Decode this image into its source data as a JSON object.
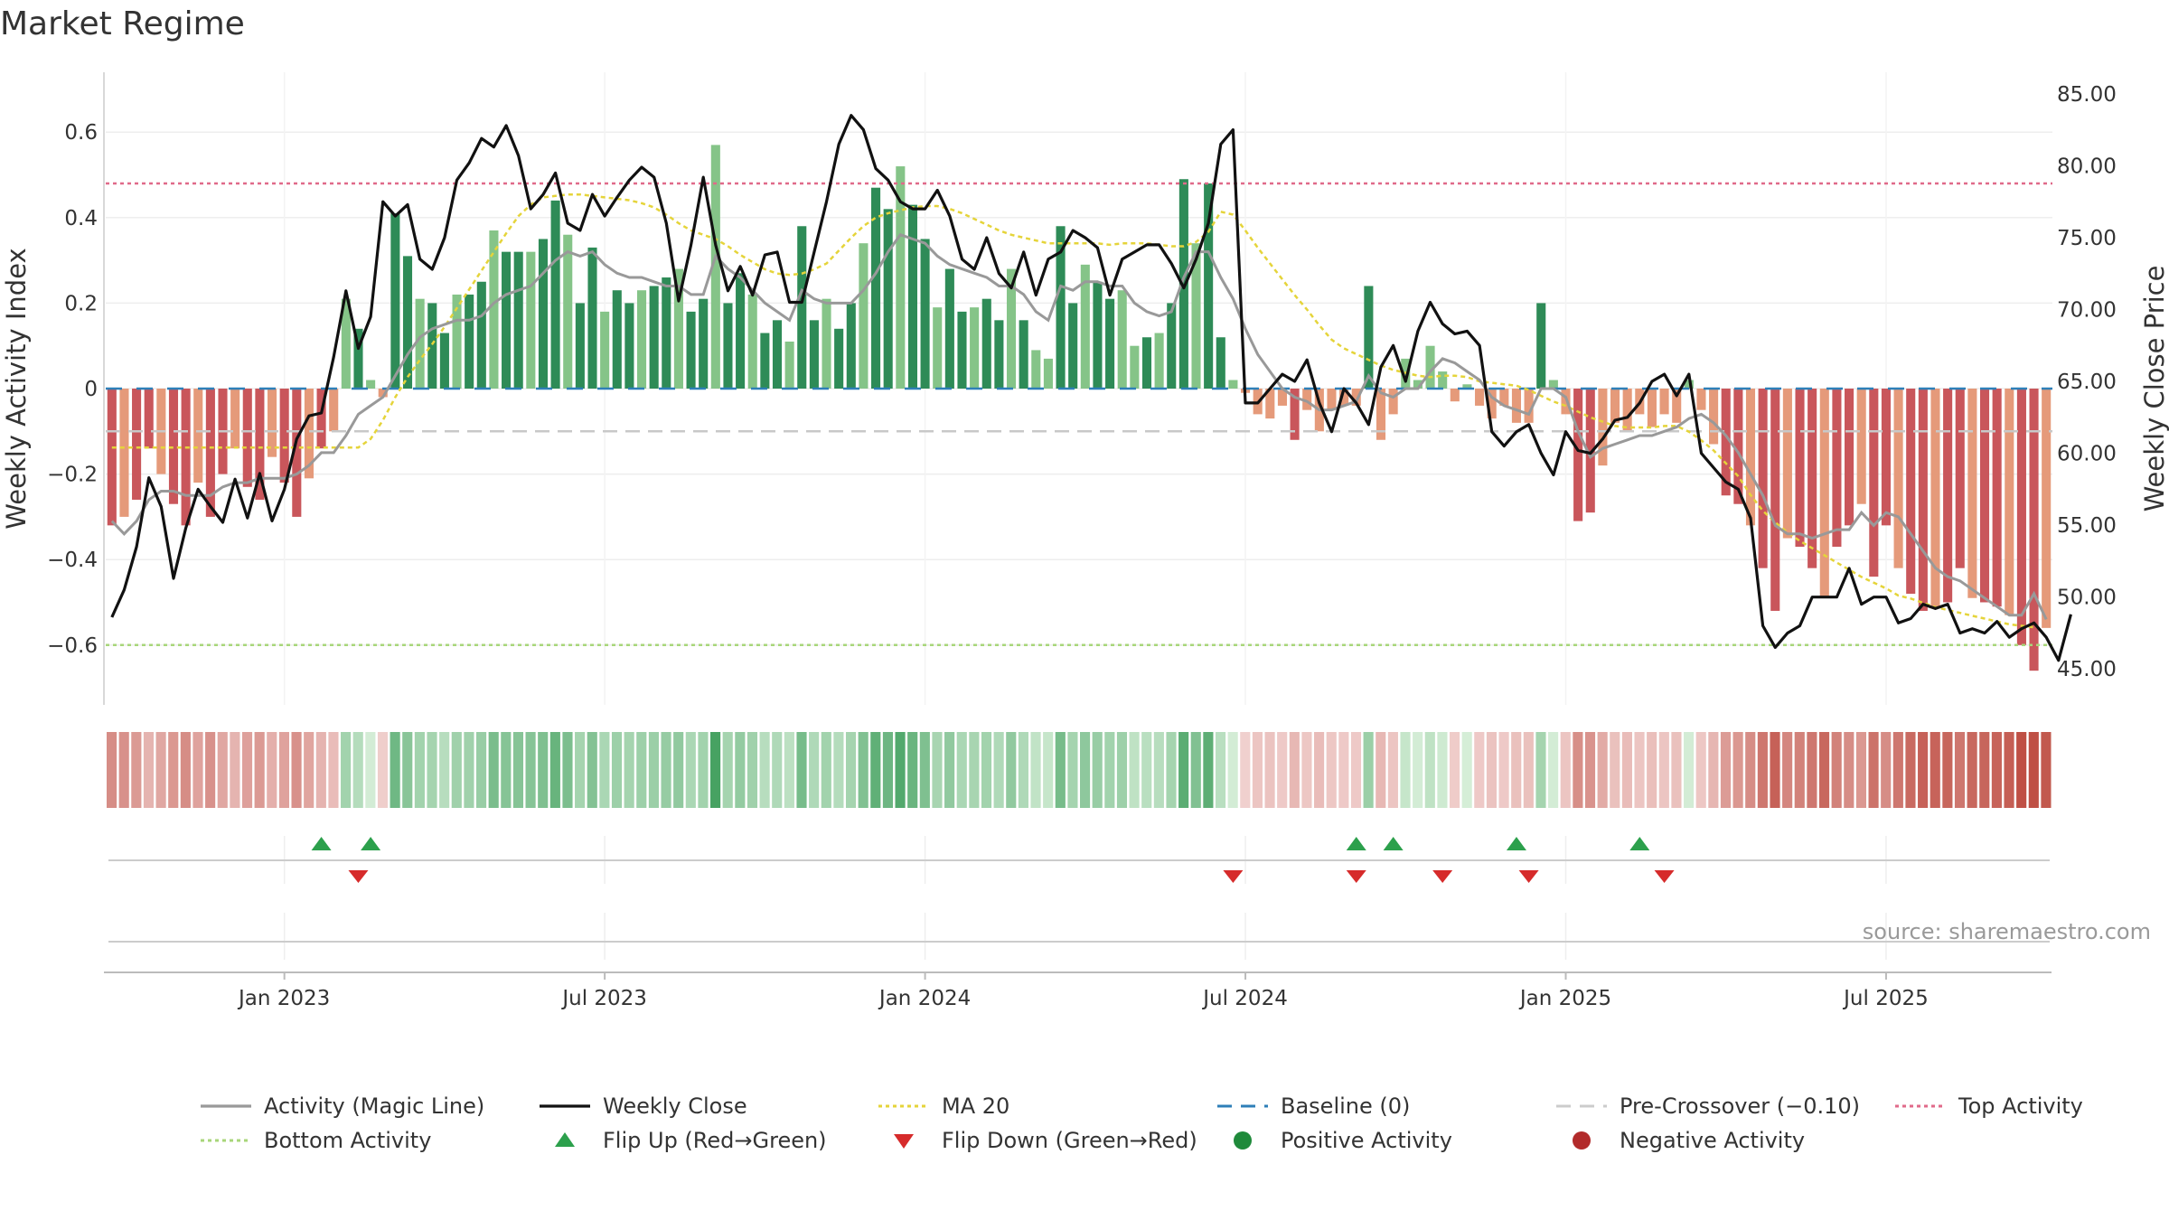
{
  "chart_data": {
    "type": "bar",
    "title": "Market Regime",
    "source": "source: sharemaestro.com",
    "x_axis": {
      "ticks": [
        "Jan 2023",
        "Jul 2023",
        "Jan 2024",
        "Jul 2024",
        "Jan 2025",
        "Jul 2025"
      ],
      "tick_weeks": [
        14,
        40,
        66,
        92,
        118,
        144
      ]
    },
    "y_left": {
      "label": "Weekly Activity Index",
      "ylim": [
        -0.74,
        0.74
      ],
      "ticks": [
        0.6,
        0.4,
        0.2,
        0,
        -0.2,
        -0.4,
        -0.6
      ],
      "tick_labels": [
        "0.6",
        "0.4",
        "0.2",
        "0",
        "−0.2",
        "−0.4",
        "−0.6"
      ]
    },
    "y_right": {
      "label": "Weekly Close Price",
      "ylim": [
        42.5,
        86.5
      ],
      "ticks": [
        85,
        80,
        75,
        70,
        65,
        60,
        55,
        50,
        45
      ],
      "tick_labels": [
        "85.00",
        "80.00",
        "75.00",
        "70.00",
        "65.00",
        "60.00",
        "55.00",
        "50.00",
        "45.00"
      ]
    },
    "reference_lines": {
      "top_activity": 0.48,
      "bottom_activity": -0.6,
      "baseline": 0,
      "pre_crossover": -0.1
    },
    "activity": [
      -0.32,
      -0.3,
      -0.26,
      -0.14,
      -0.2,
      -0.27,
      -0.32,
      -0.22,
      -0.3,
      -0.2,
      -0.14,
      -0.23,
      -0.26,
      -0.16,
      -0.22,
      -0.3,
      -0.21,
      -0.14,
      -0.1,
      0.21,
      0.14,
      0.02,
      -0.02,
      0.41,
      0.31,
      0.21,
      0.2,
      0.13,
      0.22,
      0.22,
      0.25,
      0.37,
      0.32,
      0.32,
      0.32,
      0.35,
      0.44,
      0.36,
      0.2,
      0.33,
      0.18,
      0.23,
      0.2,
      0.23,
      0.24,
      0.26,
      0.28,
      0.18,
      0.21,
      0.57,
      0.2,
      0.27,
      0.22,
      0.13,
      0.16,
      0.11,
      0.38,
      0.16,
      0.21,
      0.14,
      0.2,
      0.34,
      0.47,
      0.42,
      0.52,
      0.43,
      0.35,
      0.19,
      0.28,
      0.18,
      0.19,
      0.21,
      0.16,
      0.28,
      0.16,
      0.09,
      0.07,
      0.38,
      0.2,
      0.29,
      0.25,
      0.21,
      0.23,
      0.1,
      0.12,
      0.13,
      0.2,
      0.49,
      0.34,
      0.48,
      0.12,
      0.02,
      -0.01,
      -0.06,
      -0.07,
      -0.04,
      -0.12,
      -0.05,
      -0.1,
      -0.05,
      -0.04,
      -0.04,
      0.24,
      -0.12,
      -0.06,
      0.07,
      0.02,
      0.1,
      0.04,
      -0.03,
      0.01,
      -0.04,
      -0.07,
      -0.04,
      -0.08,
      -0.08,
      0.2,
      0.02,
      -0.06,
      -0.31,
      -0.29,
      -0.18,
      -0.08,
      -0.1,
      -0.06,
      -0.09,
      -0.06,
      -0.08,
      0.02,
      -0.05,
      -0.13,
      -0.25,
      -0.27,
      -0.32,
      -0.42,
      -0.52,
      -0.35,
      -0.37,
      -0.42,
      -0.49,
      -0.37,
      -0.32,
      -0.27,
      -0.44,
      -0.32,
      -0.42,
      -0.48,
      -0.52,
      -0.51,
      -0.5,
      -0.42,
      -0.49,
      -0.5,
      -0.51,
      -0.53,
      -0.6,
      -0.66,
      -0.56
    ],
    "magic_line": [
      -0.31,
      -0.34,
      -0.31,
      -0.26,
      -0.24,
      -0.24,
      -0.25,
      -0.25,
      -0.25,
      -0.23,
      -0.22,
      -0.22,
      -0.21,
      -0.21,
      -0.21,
      -0.2,
      -0.18,
      -0.15,
      -0.15,
      -0.11,
      -0.06,
      -0.04,
      -0.02,
      0.03,
      0.08,
      0.12,
      0.14,
      0.15,
      0.16,
      0.16,
      0.17,
      0.2,
      0.22,
      0.23,
      0.24,
      0.27,
      0.3,
      0.32,
      0.31,
      0.32,
      0.29,
      0.27,
      0.26,
      0.26,
      0.25,
      0.24,
      0.24,
      0.22,
      0.22,
      0.31,
      0.28,
      0.26,
      0.23,
      0.2,
      0.18,
      0.16,
      0.23,
      0.21,
      0.2,
      0.2,
      0.2,
      0.23,
      0.27,
      0.32,
      0.36,
      0.35,
      0.34,
      0.31,
      0.29,
      0.28,
      0.27,
      0.26,
      0.24,
      0.24,
      0.22,
      0.18,
      0.16,
      0.24,
      0.23,
      0.25,
      0.25,
      0.24,
      0.24,
      0.2,
      0.18,
      0.17,
      0.18,
      0.26,
      0.32,
      0.32,
      0.26,
      0.21,
      0.14,
      0.08,
      0.04,
      0,
      -0.02,
      -0.03,
      -0.05,
      -0.05,
      -0.04,
      -0.03,
      0.03,
      -0.01,
      -0.02,
      0,
      0,
      0.04,
      0.07,
      0.06,
      0.04,
      0.02,
      -0.02,
      -0.04,
      -0.05,
      -0.06,
      0,
      0,
      -0.02,
      -0.1,
      -0.16,
      -0.14,
      -0.13,
      -0.12,
      -0.11,
      -0.11,
      -0.1,
      -0.09,
      -0.07,
      -0.06,
      -0.08,
      -0.11,
      -0.15,
      -0.2,
      -0.25,
      -0.32,
      -0.34,
      -0.34,
      -0.35,
      -0.34,
      -0.33,
      -0.33,
      -0.29,
      -0.32,
      -0.29,
      -0.3,
      -0.34,
      -0.38,
      -0.42,
      -0.44,
      -0.45,
      -0.47,
      -0.49,
      -0.51,
      -0.53,
      -0.53,
      -0.48,
      -0.54
    ],
    "weekly_close": [
      48.6,
      50.5,
      53.5,
      58.3,
      56.3,
      51.3,
      54.8,
      57.5,
      56.3,
      55.2,
      58.2,
      55.5,
      58.6,
      55.3,
      57.5,
      61,
      62.6,
      62.8,
      66.7,
      71.3,
      67.3,
      69.5,
      77.5,
      76.5,
      77.3,
      73.5,
      72.8,
      75,
      79,
      80.2,
      81.9,
      81.3,
      82.8,
      80.7,
      77,
      78,
      79.5,
      76,
      75.5,
      78,
      76.5,
      77.8,
      79,
      79.9,
      79.2,
      76,
      70.6,
      74.5,
      79.2,
      74.5,
      71.3,
      73,
      71,
      73.8,
      74,
      70.5,
      70.5,
      74,
      77.5,
      81.5,
      83.5,
      82.5,
      79.8,
      79,
      77.5,
      77,
      77,
      78.3,
      76.5,
      73.5,
      72.8,
      75,
      72.5,
      71.5,
      74,
      71,
      73.5,
      74,
      75.5,
      75,
      74.3,
      71,
      73.5,
      74,
      74.5,
      74.5,
      73.2,
      71.5,
      73.5,
      76,
      81.5,
      82.5,
      63.5,
      63.5,
      64.5,
      65.5,
      65,
      66.5,
      63.5,
      61.5,
      64.5,
      63.5,
      62,
      66,
      67.5,
      65,
      68.5,
      70.5,
      69,
      68.3,
      68.5,
      67.5,
      61.5,
      60.5,
      61.5,
      62,
      60,
      58.5,
      61.5,
      60.2,
      60,
      61,
      62.3,
      62.5,
      63.5,
      65,
      65.5,
      64,
      65.5,
      60,
      59,
      58,
      57.5,
      55.5,
      48,
      46.5,
      47.5,
      48,
      50,
      50,
      50,
      52,
      49.5,
      50,
      50,
      48.2,
      48.5,
      49.5,
      49.2,
      49.5,
      47.5,
      47.8,
      47.5,
      48.3,
      47.2,
      47.8,
      48.2,
      47.2,
      45.6,
      48.8
    ],
    "ma20": [
      60.4,
      60.4,
      60.4,
      60.4,
      60.4,
      60.4,
      60.4,
      60.4,
      60.4,
      60.4,
      60.4,
      60.4,
      60.4,
      60.4,
      60.4,
      60.4,
      60.4,
      60.4,
      60.4,
      60.4,
      60.4,
      61,
      62.3,
      63.9,
      65.3,
      66.5,
      67.6,
      68.8,
      70.1,
      71.4,
      72.7,
      74,
      75.3,
      76.5,
      77.3,
      77.8,
      77.9,
      78,
      78,
      77.9,
      77.8,
      77.7,
      77.6,
      77.4,
      77.1,
      76.6,
      76,
      75.5,
      75.2,
      74.9,
      74.4,
      73.8,
      73.3,
      72.8,
      72.5,
      72.4,
      72.5,
      72.8,
      73.2,
      74.1,
      75,
      75.8,
      76.4,
      76.7,
      76.9,
      77.1,
      77.2,
      77.2,
      77,
      76.7,
      76.3,
      75.9,
      75.5,
      75.2,
      75,
      74.8,
      74.6,
      74.6,
      74.6,
      74.6,
      74.6,
      74.5,
      74.6,
      74.6,
      74.6,
      74.5,
      74.4,
      74.4,
      74.7,
      75.4,
      76.8,
      76.6,
      75.5,
      74.3,
      73.2,
      72.1,
      71,
      70,
      68.9,
      67.9,
      67.3,
      66.9,
      66.5,
      66.1,
      65.8,
      65.6,
      65.4,
      65.3,
      65.4,
      65.4,
      65.3,
      65,
      64.9,
      64.8,
      64.7,
      64.4,
      64,
      63.6,
      63.3,
      62.9,
      62.5,
      62.2,
      61.9,
      61.8,
      61.8,
      61.8,
      61.9,
      61.9,
      61.5,
      60.9,
      60.2,
      59.3,
      58.4,
      57.1,
      56,
      55.2,
      54.5,
      53.9,
      53.4,
      52.9,
      52.4,
      51.9,
      51.4,
      51,
      50.6,
      50.1,
      49.9,
      49.6,
      49.3,
      49.1,
      48.9,
      48.7,
      48.5,
      48.3,
      48.1,
      48,
      47.9
    ],
    "flip_up_weeks": [
      17,
      21,
      101,
      104,
      114,
      124
    ],
    "flip_down_weeks": [
      20,
      91,
      101,
      108,
      115,
      126
    ],
    "legend": {
      "items": [
        {
          "label": "Activity (Magic Line)",
          "kind": "line",
          "color": "#999999"
        },
        {
          "label": "Weekly Close",
          "kind": "line",
          "color": "#111111"
        },
        {
          "label": "MA 20",
          "kind": "dotted",
          "color": "#e5d43a"
        },
        {
          "label": "Baseline (0)",
          "kind": "dashed",
          "color": "#2e7fb8"
        },
        {
          "label": "Pre-Crossover (−0.10)",
          "kind": "dashed",
          "color": "#cccccc"
        },
        {
          "label": "Top Activity",
          "kind": "dotted",
          "color": "#e06a8a"
        },
        {
          "label": "Bottom Activity",
          "kind": "dotted",
          "color": "#a8d67a"
        },
        {
          "label": "Flip Up (Red→Green)",
          "kind": "triangle-up",
          "color": "#2ca04c"
        },
        {
          "label": "Flip Down (Green→Red)",
          "kind": "triangle-down",
          "color": "#d62b2b"
        },
        {
          "label": "Positive Activity",
          "kind": "dot",
          "color": "#1f8a3b"
        },
        {
          "label": "Negative Activity",
          "kind": "dot",
          "color": "#b22b2b"
        }
      ]
    },
    "colors": {
      "pos_strong": "#2e8b57",
      "pos_light": "#85c488",
      "neg_strong": "#c9565b",
      "neg_light": "#e59a7a",
      "top_line": "#e06a8a",
      "bottom_line": "#a8d67a",
      "baseline": "#2e7fb8",
      "pre_crossover": "#c8c8c8",
      "magic_line": "#999999",
      "close": "#111111",
      "ma20": "#e5d43a"
    }
  }
}
